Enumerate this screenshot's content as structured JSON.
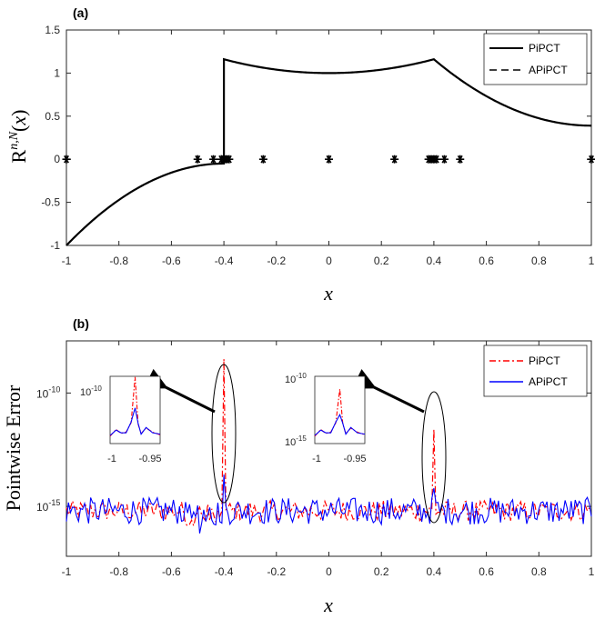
{
  "chart_data": [
    {
      "panel": "(a)",
      "type": "line",
      "xlabel": "x",
      "ylabel": "R^{n,N}(x)",
      "xlim": [
        -1,
        1
      ],
      "ylim": [
        -1,
        1.5
      ],
      "xticks": [
        "-1",
        "-0.8",
        "-0.6",
        "-0.4",
        "-0.2",
        "0",
        "0.2",
        "0.4",
        "0.6",
        "0.8",
        "1"
      ],
      "xtick_values": [
        -1,
        -0.8,
        -0.6,
        -0.4,
        -0.2,
        0,
        0.2,
        0.4,
        0.6,
        0.8,
        1
      ],
      "yticks": [
        "-1",
        "-0.5",
        "0",
        "0.5",
        "1",
        "1.5"
      ],
      "ytick_values": [
        -1,
        -0.5,
        0,
        0.5,
        1,
        1.5
      ],
      "legend": [
        "PiPCT",
        "APiPCT"
      ],
      "legend_position": "top-right",
      "jump_points": [
        -0.4,
        0.4
      ],
      "markers_x": [
        -1,
        -0.5,
        -0.44,
        -0.41,
        -0.4,
        -0.39,
        -0.38,
        -0.25,
        0,
        0.25,
        0.38,
        0.39,
        0.4,
        0.41,
        0.44,
        0.5,
        1
      ],
      "markers_y": 0,
      "series": [
        {
          "name": "PiPCT",
          "style": "solid",
          "color": "#000000"
        },
        {
          "name": "APiPCT",
          "style": "dashed",
          "color": "#000000"
        }
      ]
    },
    {
      "panel": "(b)",
      "type": "line",
      "xlabel": "x",
      "ylabel": "Pointwise Error",
      "xlim": [
        -1,
        1
      ],
      "ylim_log10": [
        -17.2,
        -7.7
      ],
      "xticks": [
        "-1",
        "-0.8",
        "-0.6",
        "-0.4",
        "-0.2",
        "0",
        "0.2",
        "0.4",
        "0.6",
        "0.8",
        "1"
      ],
      "xtick_values": [
        -1,
        -0.8,
        -0.6,
        -0.4,
        -0.2,
        0,
        0.2,
        0.4,
        0.6,
        0.8,
        1
      ],
      "yticks": [
        {
          "base": "10",
          "exp": "-10",
          "value": -10
        },
        {
          "base": "10",
          "exp": "-15",
          "value": -15
        }
      ],
      "legend": [
        "PiPCT",
        "APiPCT"
      ],
      "legend_position": "top-right",
      "series": [
        {
          "name": "PiPCT",
          "style": "dashdot",
          "color": "#ff0000",
          "baseline_log10": -15.2,
          "spike_log10_at_-0.4": -8.5,
          "spike_log10_at_0.4": -11.6
        },
        {
          "name": "APiPCT",
          "style": "solid",
          "color": "#0000ff",
          "baseline_log10": -15.2,
          "spike_log10_at_-0.4": -13.6,
          "spike_log10_at_0.4": -14.2
        }
      ],
      "insets": [
        {
          "xticks": [
            "-1",
            "-0.95"
          ],
          "yticks": [
            {
              "base": "10",
              "exp": "-10"
            },
            {
              "base": "10",
              "exp": "-15"
            }
          ],
          "points_to_x": -0.4
        },
        {
          "xticks": [
            "-1",
            "-0.95"
          ],
          "yticks": [
            {
              "base": "10",
              "exp": "-10"
            },
            {
              "base": "10",
              "exp": "-15"
            }
          ],
          "points_to_x": 0.4
        }
      ]
    }
  ]
}
